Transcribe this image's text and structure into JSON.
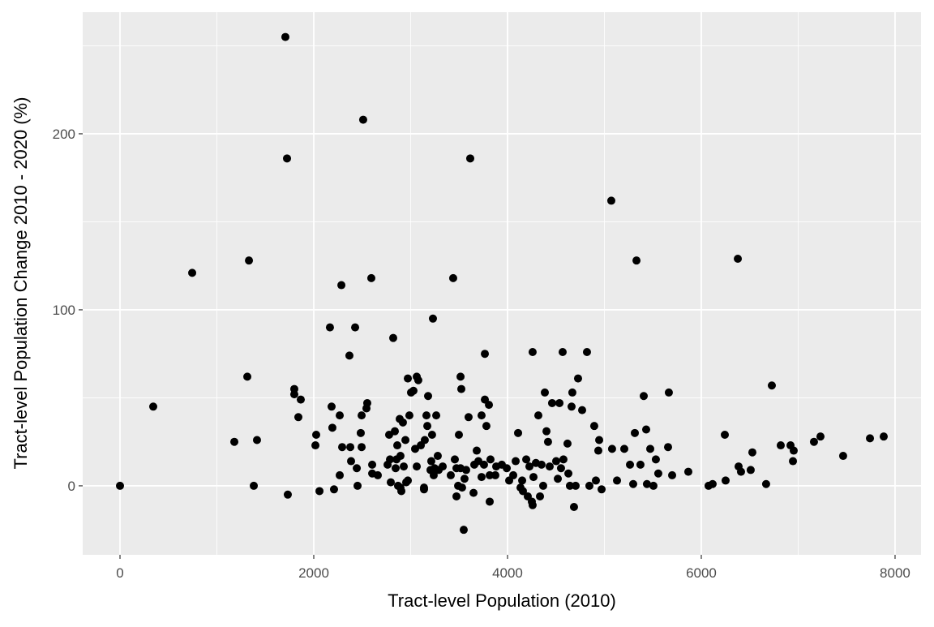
{
  "chart_data": {
    "type": "scatter",
    "xlabel": "Tract-level Population (2010)",
    "ylabel": "Tract-level Population Change 2010 - 2020 (%)",
    "color": "#000000",
    "grid": true,
    "xlim": [
      -385,
      8268
    ],
    "ylim": [
      -39.2,
      269.1
    ],
    "xticks": [
      0,
      2000,
      4000,
      6000,
      8000
    ],
    "yticks": [
      0,
      100,
      200
    ],
    "xminor": [
      1000,
      3000,
      5000,
      7000
    ],
    "yminor": [
      50,
      150,
      250
    ],
    "x": [
      0,
      343,
      745,
      1180,
      1314,
      1331,
      1381,
      1414,
      1707,
      1724,
      1732,
      1799,
      1799,
      1841,
      1866,
      2017,
      2025,
      2059,
      2167,
      2184,
      2192,
      2209,
      2268,
      2268,
      2285,
      2293,
      2368,
      2377,
      2385,
      2427,
      2444,
      2452,
      2485,
      2494,
      2494,
      2510,
      2544,
      2552,
      2594,
      2603,
      2603,
      2661,
      2762,
      2778,
      2787,
      2820,
      2795,
      2837,
      2845,
      2854,
      2862,
      2870,
      2887,
      2895,
      2895,
      2904,
      2920,
      2929,
      2946,
      2954,
      2971,
      2971,
      2987,
      3004,
      3029,
      3046,
      3063,
      3063,
      3079,
      3105,
      3138,
      3138,
      3146,
      3163,
      3172,
      3180,
      3205,
      3213,
      3221,
      3230,
      3238,
      3247,
      3264,
      3280,
      3289,
      3331,
      3414,
      3439,
      3456,
      3473,
      3473,
      3490,
      3498,
      3515,
      3515,
      3523,
      3531,
      3548,
      3556,
      3573,
      3598,
      3615,
      3649,
      3657,
      3682,
      3699,
      3732,
      3732,
      3757,
      3766,
      3766,
      3782,
      3808,
      3816,
      3816,
      3824,
      3874,
      3883,
      3941,
      3992,
      4017,
      4059,
      4084,
      4109,
      4134,
      4151,
      4159,
      4193,
      4209,
      4226,
      4251,
      4259,
      4268,
      4259,
      4293,
      4318,
      4335,
      4351,
      4368,
      4385,
      4402,
      4418,
      4435,
      4460,
      4502,
      4519,
      4536,
      4552,
      4569,
      4577,
      4619,
      4628,
      4644,
      4661,
      4669,
      4686,
      4703,
      4728,
      4770,
      4820,
      4845,
      4895,
      4912,
      4937,
      4946,
      4971,
      5071,
      5079,
      5130,
      5205,
      5264,
      5297,
      5314,
      5331,
      5372,
      5406,
      5431,
      5439,
      5473,
      5506,
      5531,
      5556,
      5657,
      5665,
      5699,
      5866,
      6075,
      6117,
      6243,
      6251,
      6377,
      6385,
      6410,
      6510,
      6527,
      6669,
      6728,
      6820,
      6921,
      6946,
      6954,
      7163,
      7230,
      7464,
      7741,
      7883
    ],
    "values": [
      0,
      45,
      121,
      25,
      62,
      128,
      0,
      26,
      255,
      186,
      -5,
      55,
      52,
      39,
      49,
      23,
      29,
      -3,
      90,
      45,
      33,
      -2,
      40,
      6,
      114,
      22,
      74,
      22,
      14,
      90,
      10,
      0,
      30,
      40,
      22,
      208,
      44,
      47,
      118,
      12,
      7,
      6,
      12,
      29,
      15,
      84,
      2,
      31,
      10,
      15,
      23,
      0,
      38,
      -1,
      17,
      -3,
      36,
      11,
      26,
      2,
      61,
      3,
      40,
      53,
      54,
      21,
      62,
      11,
      60,
      23,
      -1,
      -2,
      26,
      40,
      34,
      51,
      9,
      14,
      29,
      95,
      6,
      10,
      40,
      17,
      9,
      11,
      6,
      118,
      15,
      -6,
      10,
      0,
      29,
      10,
      62,
      55,
      -1,
      -25,
      4,
      9,
      39,
      186,
      -4,
      12,
      20,
      14,
      5,
      40,
      12,
      75,
      49,
      34,
      46,
      -9,
      6,
      15,
      6,
      11,
      12,
      10,
      3,
      6,
      14,
      30,
      -1,
      3,
      -3,
      15,
      -6,
      11,
      -9,
      -11,
      5,
      76,
      13,
      40,
      -6,
      12,
      0,
      53,
      31,
      25,
      11,
      47,
      14,
      4,
      47,
      10,
      76,
      15,
      24,
      7,
      0,
      45,
      53,
      -12,
      0,
      61,
      43,
      76,
      0,
      34,
      3,
      20,
      26,
      -2,
      162,
      21,
      3,
      21,
      12,
      1,
      30,
      128,
      12,
      51,
      32,
      1,
      21,
      0,
      15,
      7,
      22,
      53,
      6,
      8,
      0,
      1,
      29,
      3,
      129,
      11,
      8,
      9,
      19,
      1,
      57,
      23,
      23,
      14,
      20,
      25,
      28,
      17,
      27,
      28
    ]
  }
}
